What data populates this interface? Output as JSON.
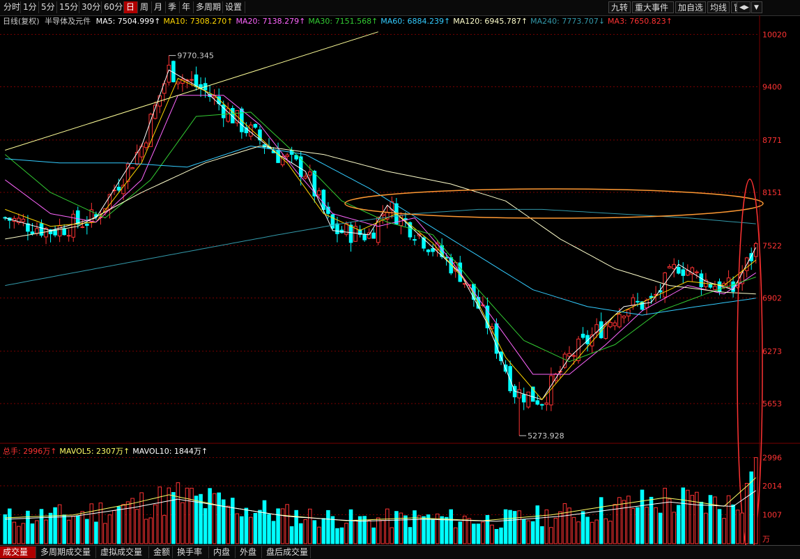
{
  "toolbar": {
    "periods": [
      "分时",
      "1分",
      "5分",
      "15分",
      "30分",
      "60分",
      "日",
      "周",
      "月",
      "季",
      "年",
      "多周期",
      "设置"
    ],
    "active_period": "日",
    "right_buttons": [
      "九转",
      "重大事件",
      "加自选",
      "均线",
      "窗"
    ],
    "arrow_left": "◀▶",
    "arrow_down": "▼"
  },
  "legend": {
    "prefix": "日线(复权)",
    "name": "半导体及元件",
    "items": [
      {
        "label": "MA5: 7504.999",
        "arrow": "↑",
        "color": "#ffffff"
      },
      {
        "label": "MA10: 7308.270",
        "arrow": "↑",
        "color": "#ffd700"
      },
      {
        "label": "MA20: 7138.279",
        "arrow": "↑",
        "color": "#ff66ff"
      },
      {
        "label": "MA30: 7151.568",
        "arrow": "↑",
        "color": "#33cc33"
      },
      {
        "label": "MA60: 6884.239",
        "arrow": "↑",
        "color": "#33ccff"
      },
      {
        "label": "MA120: 6945.787",
        "arrow": "↑",
        "color": "#ffffcc"
      },
      {
        "label": "MA240: 7773.707",
        "arrow": "↓",
        "color": "#3399aa"
      },
      {
        "label": "MA3: 7650.823",
        "arrow": "↑",
        "color": "#ff3333"
      }
    ]
  },
  "vol_legend": {
    "items": [
      {
        "label": "总手: 2996万",
        "arrow": "↑",
        "color": "#ff3333"
      },
      {
        "label": "MAVOL5: 2307万",
        "arrow": "↑",
        "color": "#ffff66"
      },
      {
        "label": "MAVOL10: 1844万",
        "arrow": "↑",
        "color": "#ffffff"
      }
    ]
  },
  "bottom_tabs": [
    "成交量",
    "多周期成交量",
    "虚拟成交量",
    "金额",
    "换手率",
    "内盘",
    "外盘",
    "盘后成交量"
  ],
  "active_bottom_tab": "成交量",
  "colors": {
    "up": "#ff3333",
    "down": "#00ffff",
    "grid": "#7a0000",
    "axis_text": "#ff3333"
  },
  "chart_data": {
    "type": "candlestick",
    "price_ticks": [
      10020,
      9400,
      8771,
      8151,
      7522,
      6902,
      6273,
      5653
    ],
    "price_range": [
      5200,
      10130
    ],
    "volume_ticks": [
      2996,
      2014,
      1007
    ],
    "volume_unit": "万",
    "volume_range": [
      0,
      3300
    ],
    "annotations": [
      {
        "text": "9770.345",
        "index": 36,
        "value": 9770.345
      },
      {
        "text": "5273.928",
        "index": 113,
        "value": 5273.928
      }
    ],
    "ma_anchors": {
      "MA5": [
        [
          0,
          7850
        ],
        [
          10,
          7700
        ],
        [
          20,
          7850
        ],
        [
          30,
          8700
        ],
        [
          36,
          9600
        ],
        [
          44,
          9350
        ],
        [
          52,
          8950
        ],
        [
          60,
          8600
        ],
        [
          66,
          8400
        ],
        [
          72,
          7700
        ],
        [
          80,
          7650
        ],
        [
          84,
          8000
        ],
        [
          92,
          7600
        ],
        [
          100,
          7200
        ],
        [
          106,
          6600
        ],
        [
          112,
          5800
        ],
        [
          118,
          5700
        ],
        [
          124,
          6200
        ],
        [
          130,
          6500
        ],
        [
          136,
          6800
        ],
        [
          142,
          6850
        ],
        [
          148,
          7300
        ],
        [
          154,
          7100
        ],
        [
          160,
          7000
        ],
        [
          165,
          7500
        ]
      ],
      "MA10": [
        [
          0,
          7950
        ],
        [
          10,
          7750
        ],
        [
          20,
          7800
        ],
        [
          30,
          8500
        ],
        [
          38,
          9500
        ],
        [
          46,
          9300
        ],
        [
          54,
          8900
        ],
        [
          62,
          8500
        ],
        [
          70,
          7900
        ],
        [
          78,
          7700
        ],
        [
          86,
          7900
        ],
        [
          94,
          7550
        ],
        [
          102,
          7050
        ],
        [
          110,
          6200
        ],
        [
          118,
          5700
        ],
        [
          126,
          6200
        ],
        [
          134,
          6700
        ],
        [
          142,
          6900
        ],
        [
          150,
          7100
        ],
        [
          158,
          7050
        ],
        [
          165,
          7350
        ]
      ],
      "MA20": [
        [
          0,
          8300
        ],
        [
          10,
          7900
        ],
        [
          20,
          7800
        ],
        [
          30,
          8300
        ],
        [
          38,
          9300
        ],
        [
          48,
          9300
        ],
        [
          56,
          8950
        ],
        [
          64,
          8400
        ],
        [
          72,
          7900
        ],
        [
          82,
          7750
        ],
        [
          90,
          7850
        ],
        [
          98,
          7350
        ],
        [
          108,
          6600
        ],
        [
          116,
          6000
        ],
        [
          124,
          6000
        ],
        [
          132,
          6350
        ],
        [
          140,
          6750
        ],
        [
          150,
          7050
        ],
        [
          158,
          6950
        ],
        [
          165,
          7200
        ]
      ],
      "MA30": [
        [
          0,
          8600
        ],
        [
          10,
          8150
        ],
        [
          22,
          7850
        ],
        [
          32,
          8300
        ],
        [
          42,
          9050
        ],
        [
          54,
          9100
        ],
        [
          64,
          8600
        ],
        [
          74,
          8050
        ],
        [
          84,
          7800
        ],
        [
          94,
          7650
        ],
        [
          104,
          7000
        ],
        [
          114,
          6400
        ],
        [
          124,
          6150
        ],
        [
          134,
          6350
        ],
        [
          144,
          6750
        ],
        [
          154,
          6950
        ],
        [
          165,
          7150
        ]
      ],
      "MA60": [
        [
          0,
          8550
        ],
        [
          12,
          8500
        ],
        [
          26,
          8500
        ],
        [
          40,
          8450
        ],
        [
          54,
          8700
        ],
        [
          66,
          8600
        ],
        [
          80,
          8200
        ],
        [
          92,
          7800
        ],
        [
          104,
          7400
        ],
        [
          116,
          7000
        ],
        [
          128,
          6800
        ],
        [
          140,
          6700
        ],
        [
          152,
          6800
        ],
        [
          165,
          6900
        ]
      ],
      "MA120": [
        [
          0,
          7600
        ],
        [
          16,
          7750
        ],
        [
          30,
          8150
        ],
        [
          44,
          8500
        ],
        [
          56,
          8700
        ],
        [
          70,
          8600
        ],
        [
          84,
          8400
        ],
        [
          98,
          8250
        ],
        [
          110,
          8050
        ],
        [
          122,
          7600
        ],
        [
          134,
          7250
        ],
        [
          146,
          7050
        ],
        [
          158,
          6970
        ],
        [
          165,
          6950
        ]
      ],
      "MA240": [
        [
          0,
          7050
        ],
        [
          20,
          7250
        ],
        [
          40,
          7450
        ],
        [
          60,
          7650
        ],
        [
          76,
          7800
        ],
        [
          90,
          7900
        ],
        [
          104,
          7950
        ],
        [
          118,
          7950
        ],
        [
          134,
          7900
        ],
        [
          150,
          7850
        ],
        [
          165,
          7780
        ]
      ],
      "trend": [
        [
          0,
          8650
        ],
        [
          82,
          10050
        ]
      ]
    },
    "vol_ma_anchors": {
      "MAVOL5": [
        [
          0,
          900
        ],
        [
          15,
          1000
        ],
        [
          28,
          1400
        ],
        [
          36,
          1700
        ],
        [
          48,
          1300
        ],
        [
          60,
          1000
        ],
        [
          75,
          800
        ],
        [
          90,
          900
        ],
        [
          105,
          800
        ],
        [
          120,
          1000
        ],
        [
          132,
          1300
        ],
        [
          145,
          1600
        ],
        [
          150,
          1500
        ],
        [
          158,
          1300
        ],
        [
          163,
          2000
        ],
        [
          165,
          2300
        ]
      ],
      "MAVOL10": [
        [
          0,
          850
        ],
        [
          15,
          950
        ],
        [
          28,
          1250
        ],
        [
          38,
          1550
        ],
        [
          50,
          1250
        ],
        [
          62,
          950
        ],
        [
          78,
          780
        ],
        [
          92,
          850
        ],
        [
          108,
          780
        ],
        [
          122,
          950
        ],
        [
          134,
          1200
        ],
        [
          146,
          1450
        ],
        [
          152,
          1350
        ],
        [
          160,
          1300
        ],
        [
          165,
          1850
        ]
      ]
    }
  }
}
